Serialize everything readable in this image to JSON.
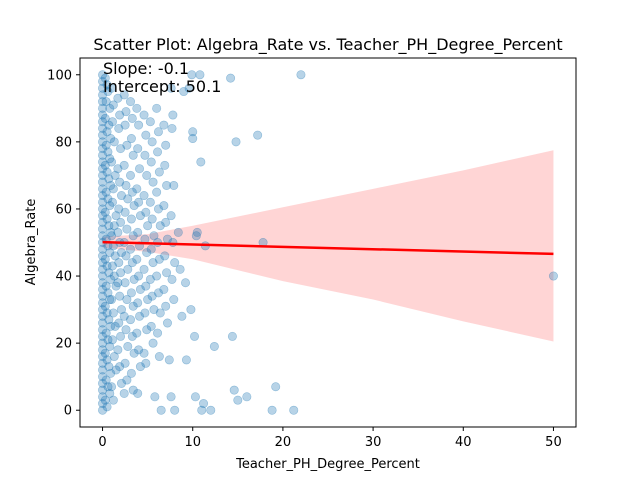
{
  "chart_data": {
    "type": "scatter",
    "title": "Scatter Plot: Algebra_Rate vs. Teacher_PH_Degree_Percent",
    "xlabel": "Teacher_PH_Degree_Percent",
    "ylabel": "Algebra_Rate",
    "xlim": [
      -2.5,
      52.5
    ],
    "ylim": [
      -5,
      105
    ],
    "xticks": [
      0,
      10,
      20,
      30,
      40,
      50
    ],
    "yticks": [
      0,
      20,
      40,
      60,
      80,
      100
    ],
    "grid": false,
    "legend": "none",
    "annotations": [
      {
        "label": "slope",
        "text": "Slope: -0.1"
      },
      {
        "label": "intercept",
        "text": "Intercept: 50.1"
      }
    ],
    "regression": {
      "slope": -0.07,
      "intercept": 50.1,
      "x_range": [
        0,
        50
      ],
      "ci": [
        {
          "x": 0,
          "lower": 48.5,
          "upper": 51.7
        },
        {
          "x": 5,
          "lower": 47.2,
          "upper": 52.5
        },
        {
          "x": 10,
          "lower": 45.0,
          "upper": 55.0
        },
        {
          "x": 20,
          "lower": 38.5,
          "upper": 60.5
        },
        {
          "x": 30,
          "lower": 33.0,
          "upper": 66.0
        },
        {
          "x": 40,
          "lower": 26.5,
          "upper": 71.5
        },
        {
          "x": 50,
          "lower": 20.5,
          "upper": 77.5
        }
      ]
    },
    "colors": {
      "points": "#1f77b4",
      "line": "#ff0000",
      "band": "#ffb3b3"
    },
    "points": [
      [
        0,
        100
      ],
      [
        0,
        98
      ],
      [
        0,
        96
      ],
      [
        0,
        94
      ],
      [
        0,
        92
      ],
      [
        0,
        90
      ],
      [
        0,
        88
      ],
      [
        0,
        86
      ],
      [
        0,
        84
      ],
      [
        0,
        82
      ],
      [
        0,
        80
      ],
      [
        0,
        78
      ],
      [
        0,
        76
      ],
      [
        0,
        74
      ],
      [
        0,
        72
      ],
      [
        0,
        70
      ],
      [
        0,
        68
      ],
      [
        0,
        66
      ],
      [
        0,
        64
      ],
      [
        0,
        62
      ],
      [
        0,
        60
      ],
      [
        0,
        58
      ],
      [
        0,
        56
      ],
      [
        0,
        54
      ],
      [
        0,
        52
      ],
      [
        0,
        50
      ],
      [
        0,
        48
      ],
      [
        0,
        46
      ],
      [
        0,
        44
      ],
      [
        0,
        42
      ],
      [
        0,
        40
      ],
      [
        0,
        38
      ],
      [
        0,
        36
      ],
      [
        0,
        34
      ],
      [
        0,
        32
      ],
      [
        0,
        30
      ],
      [
        0,
        28
      ],
      [
        0,
        26
      ],
      [
        0,
        24
      ],
      [
        0,
        22
      ],
      [
        0,
        20
      ],
      [
        0,
        18
      ],
      [
        0,
        16
      ],
      [
        0,
        14
      ],
      [
        0,
        12
      ],
      [
        0,
        10
      ],
      [
        0,
        8
      ],
      [
        0,
        6
      ],
      [
        0,
        4
      ],
      [
        0,
        2
      ],
      [
        0,
        0
      ],
      [
        0.3,
        99
      ],
      [
        0.5,
        97
      ],
      [
        0.6,
        95
      ],
      [
        0.4,
        92
      ],
      [
        0.8,
        90
      ],
      [
        0.3,
        87
      ],
      [
        0.7,
        85
      ],
      [
        0.5,
        83
      ],
      [
        0.9,
        81
      ],
      [
        0.4,
        79
      ],
      [
        0.6,
        77
      ],
      [
        0.8,
        75
      ],
      [
        0.3,
        73
      ],
      [
        0.5,
        71
      ],
      [
        0.7,
        69
      ],
      [
        0.9,
        67
      ],
      [
        0.4,
        65
      ],
      [
        0.6,
        63
      ],
      [
        0.8,
        61
      ],
      [
        0.3,
        59
      ],
      [
        0.5,
        57
      ],
      [
        0.7,
        55
      ],
      [
        0.9,
        53
      ],
      [
        0.4,
        51
      ],
      [
        0.6,
        49
      ],
      [
        0.8,
        47
      ],
      [
        0.3,
        45
      ],
      [
        0.5,
        43
      ],
      [
        0.7,
        41
      ],
      [
        0.9,
        39
      ],
      [
        0.4,
        37
      ],
      [
        0.6,
        35
      ],
      [
        0.8,
        33
      ],
      [
        0.3,
        31
      ],
      [
        0.5,
        29
      ],
      [
        0.7,
        27
      ],
      [
        0.9,
        25
      ],
      [
        0.4,
        23
      ],
      [
        0.6,
        21
      ],
      [
        0.8,
        19
      ],
      [
        0.3,
        17
      ],
      [
        0.5,
        15
      ],
      [
        0.7,
        13
      ],
      [
        0.9,
        11
      ],
      [
        0.4,
        9
      ],
      [
        0.6,
        7
      ],
      [
        0.8,
        5
      ],
      [
        0.3,
        3
      ],
      [
        0.5,
        1
      ],
      [
        1.0,
        96
      ],
      [
        1.2,
        91
      ],
      [
        1.1,
        86
      ],
      [
        1.3,
        80
      ],
      [
        1.0,
        74
      ],
      [
        1.4,
        70
      ],
      [
        1.2,
        66
      ],
      [
        1.1,
        62
      ],
      [
        1.5,
        58
      ],
      [
        1.3,
        55
      ],
      [
        1.0,
        52
      ],
      [
        1.2,
        49
      ],
      [
        1.4,
        46
      ],
      [
        1.1,
        43
      ],
      [
        1.3,
        40
      ],
      [
        1.5,
        37
      ],
      [
        1.0,
        33
      ],
      [
        1.2,
        29
      ],
      [
        1.4,
        25
      ],
      [
        1.1,
        21
      ],
      [
        1.3,
        16
      ],
      [
        1.5,
        12
      ],
      [
        1.0,
        7
      ],
      [
        1.2,
        3
      ],
      [
        1.7,
        93
      ],
      [
        1.9,
        88
      ],
      [
        1.8,
        84
      ],
      [
        2.0,
        78
      ],
      [
        1.7,
        72
      ],
      [
        1.9,
        68
      ],
      [
        2.1,
        64
      ],
      [
        1.8,
        60
      ],
      [
        2.0,
        56
      ],
      [
        1.7,
        53
      ],
      [
        1.9,
        50
      ],
      [
        2.1,
        47
      ],
      [
        1.8,
        44
      ],
      [
        2.0,
        41
      ],
      [
        1.7,
        38
      ],
      [
        1.9,
        34
      ],
      [
        2.1,
        30
      ],
      [
        1.8,
        26
      ],
      [
        2.0,
        22
      ],
      [
        1.7,
        18
      ],
      [
        1.9,
        13
      ],
      [
        2.1,
        8
      ],
      [
        2.4,
        94
      ],
      [
        2.6,
        89
      ],
      [
        2.5,
        85
      ],
      [
        2.7,
        79
      ],
      [
        2.4,
        73
      ],
      [
        2.6,
        67
      ],
      [
        2.8,
        63
      ],
      [
        2.5,
        59
      ],
      [
        2.7,
        54
      ],
      [
        2.4,
        50
      ],
      [
        2.6,
        46
      ],
      [
        2.8,
        42
      ],
      [
        2.5,
        38
      ],
      [
        2.7,
        33
      ],
      [
        2.4,
        28
      ],
      [
        2.6,
        24
      ],
      [
        2.8,
        19
      ],
      [
        2.5,
        14
      ],
      [
        2.7,
        9
      ],
      [
        2.4,
        5
      ],
      [
        3.1,
        92
      ],
      [
        3.3,
        87
      ],
      [
        3.2,
        81
      ],
      [
        3.4,
        76
      ],
      [
        3.1,
        70
      ],
      [
        3.3,
        65
      ],
      [
        3.5,
        61
      ],
      [
        3.2,
        57
      ],
      [
        3.4,
        52
      ],
      [
        3.1,
        48
      ],
      [
        3.3,
        44
      ],
      [
        3.5,
        39
      ],
      [
        3.2,
        35
      ],
      [
        3.4,
        31
      ],
      [
        3.1,
        27
      ],
      [
        3.3,
        22
      ],
      [
        3.5,
        17
      ],
      [
        3.2,
        11
      ],
      [
        3.4,
        6
      ],
      [
        3.8,
        90
      ],
      [
        4.0,
        85
      ],
      [
        3.9,
        78
      ],
      [
        4.1,
        72
      ],
      [
        3.8,
        66
      ],
      [
        4.0,
        62
      ],
      [
        4.2,
        58
      ],
      [
        3.9,
        53
      ],
      [
        4.1,
        49
      ],
      [
        3.8,
        45
      ],
      [
        4.0,
        40
      ],
      [
        4.2,
        36
      ],
      [
        3.9,
        32
      ],
      [
        4.1,
        28
      ],
      [
        3.8,
        23
      ],
      [
        4.0,
        18
      ],
      [
        4.2,
        13
      ],
      [
        3.9,
        5
      ],
      [
        4.6,
        88
      ],
      [
        4.8,
        82
      ],
      [
        4.7,
        76
      ],
      [
        4.9,
        70
      ],
      [
        4.6,
        64
      ],
      [
        4.8,
        59
      ],
      [
        5.0,
        55
      ],
      [
        4.7,
        51
      ],
      [
        4.9,
        47
      ],
      [
        4.6,
        42
      ],
      [
        4.8,
        37
      ],
      [
        5.0,
        33
      ],
      [
        4.7,
        29
      ],
      [
        4.9,
        24
      ],
      [
        4.6,
        17
      ],
      [
        4.8,
        14
      ],
      [
        5.3,
        86
      ],
      [
        5.5,
        80
      ],
      [
        5.4,
        74
      ],
      [
        5.6,
        68
      ],
      [
        5.3,
        62
      ],
      [
        5.5,
        57
      ],
      [
        5.7,
        52
      ],
      [
        5.4,
        48
      ],
      [
        5.6,
        44
      ],
      [
        5.3,
        39
      ],
      [
        5.5,
        34
      ],
      [
        5.7,
        30
      ],
      [
        5.4,
        25
      ],
      [
        5.6,
        20
      ],
      [
        5.8,
        4
      ],
      [
        6.0,
        90
      ],
      [
        6.2,
        83
      ],
      [
        6.1,
        77
      ],
      [
        6.3,
        71
      ],
      [
        6.0,
        65
      ],
      [
        6.2,
        60
      ],
      [
        6.4,
        55
      ],
      [
        6.1,
        50
      ],
      [
        6.3,
        45
      ],
      [
        6.0,
        40
      ],
      [
        6.2,
        35
      ],
      [
        6.4,
        29
      ],
      [
        6.1,
        23
      ],
      [
        6.3,
        16
      ],
      [
        6.5,
        0
      ],
      [
        6.8,
        85
      ],
      [
        7.0,
        79
      ],
      [
        6.9,
        73
      ],
      [
        7.1,
        67
      ],
      [
        6.8,
        61
      ],
      [
        7.0,
        56
      ],
      [
        7.2,
        51
      ],
      [
        6.9,
        46
      ],
      [
        7.1,
        41
      ],
      [
        6.8,
        36
      ],
      [
        7.0,
        31
      ],
      [
        7.2,
        26
      ],
      [
        7.4,
        15
      ],
      [
        7.6,
        96
      ],
      [
        7.8,
        88
      ],
      [
        7.7,
        84
      ],
      [
        7.9,
        67
      ],
      [
        7.6,
        58
      ],
      [
        7.8,
        50
      ],
      [
        8.0,
        44
      ],
      [
        7.7,
        39
      ],
      [
        7.9,
        33
      ],
      [
        7.6,
        4
      ],
      [
        8.0,
        0
      ],
      [
        8.6,
        42
      ],
      [
        8.8,
        28
      ],
      [
        9.0,
        95
      ],
      [
        9.3,
        15
      ],
      [
        9.6,
        96
      ],
      [
        9.9,
        100
      ],
      [
        10.0,
        81
      ],
      [
        10.2,
        22
      ],
      [
        10.3,
        4
      ],
      [
        10.8,
        100
      ],
      [
        10.9,
        74
      ],
      [
        11.0,
        0
      ],
      [
        11.4,
        49
      ],
      [
        12.0,
        0
      ],
      [
        12.4,
        19
      ],
      [
        14.2,
        99
      ],
      [
        14.4,
        22
      ],
      [
        14.6,
        6
      ],
      [
        14.8,
        80
      ],
      [
        15.0,
        3
      ],
      [
        16.0,
        4
      ],
      [
        17.2,
        82
      ],
      [
        17.8,
        50
      ],
      [
        19.2,
        7
      ],
      [
        18.8,
        0
      ],
      [
        21.2,
        0
      ],
      [
        22.0,
        100
      ],
      [
        50.0,
        40
      ],
      [
        10.0,
        83
      ],
      [
        9.2,
        38
      ],
      [
        8.4,
        53
      ],
      [
        10.5,
        53
      ],
      [
        11.2,
        2
      ],
      [
        9.8,
        30
      ],
      [
        10.4,
        52
      ]
    ]
  }
}
